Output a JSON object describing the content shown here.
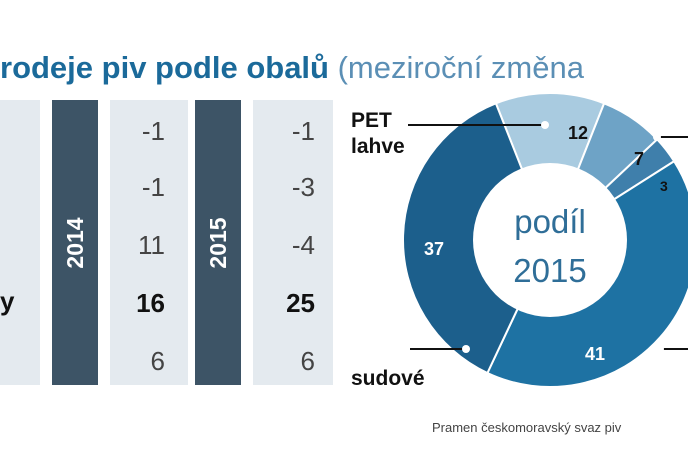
{
  "title": {
    "bold": "rodeje piv podle obalů",
    "paren": "(meziroční změna"
  },
  "table": {
    "years": [
      "2014",
      "2015"
    ],
    "row_labels": [
      "",
      "",
      "",
      "y",
      ""
    ],
    "values_2014": [
      "-1",
      "-1",
      "11",
      "16",
      "6"
    ],
    "values_2015": [
      "-1",
      "-3",
      "-4",
      "25",
      "6"
    ],
    "bold_row_index": 3
  },
  "chart_data": {
    "type": "pie",
    "title": "podíl 2015",
    "center_label_line1": "podíl",
    "center_label_line2": "2015",
    "slices": [
      {
        "label": "PET lahve",
        "value": 12,
        "color": "#a9cbe0"
      },
      {
        "label": "",
        "value": 7,
        "color": "#6ea3c6"
      },
      {
        "label": "",
        "value": 3,
        "color": "#3f7fab"
      },
      {
        "label": "",
        "value": 0,
        "color": "#2a78a8"
      },
      {
        "label": "",
        "value": 41,
        "color": "#1e72a3"
      },
      {
        "label": "sudové",
        "value": 37,
        "color": "#1c5f8c"
      }
    ],
    "value_labels": [
      "12",
      "7",
      "3",
      "41",
      "37"
    ],
    "outer_labels": {
      "pet_line1": "PET",
      "pet_line2": "lahve",
      "sudove": "sudové"
    }
  },
  "source": "Pramen českomoravský svaz piv"
}
